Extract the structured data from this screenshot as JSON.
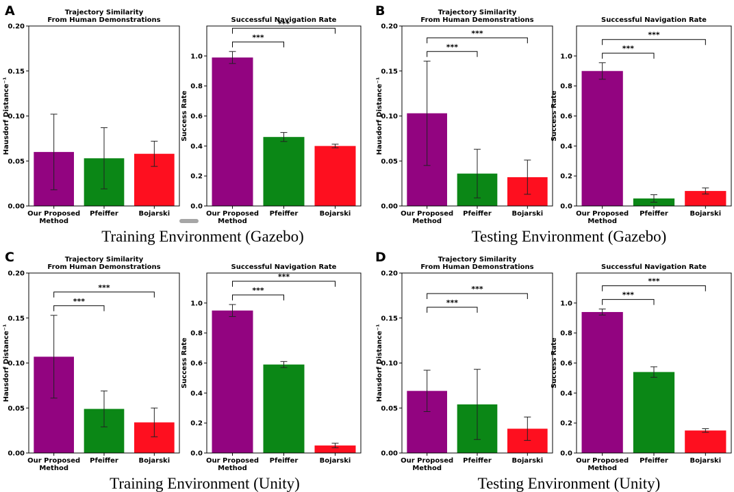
{
  "colors": {
    "purple": "#920480",
    "green": "#0b8716",
    "red": "#fe0f1f",
    "marker": "#a6a6a6"
  },
  "panels": [
    {
      "label": "A",
      "title": "Training Environment (Gazebo)"
    },
    {
      "label": "B",
      "title": "Testing Environment (Gazebo)"
    },
    {
      "label": "C",
      "title": "Training Environment (Unity)"
    },
    {
      "label": "D",
      "title": "Testing Environment (Unity)"
    }
  ],
  "chart_data": [
    {
      "id": "A-left",
      "type": "bar",
      "title": [
        "Trajectory Similarity",
        "From Human Demonstrations"
      ],
      "ylabel": "Hausdorf Distance⁻¹",
      "ylim": [
        0,
        0.2
      ],
      "yticks": [
        "0.00",
        "0.05",
        "0.10",
        "0.15",
        "0.20"
      ],
      "categories": [
        [
          "Our Proposed",
          "Method"
        ],
        [
          "Pfeiffer"
        ],
        [
          "Bojarski"
        ]
      ],
      "values": [
        0.06,
        0.053,
        0.058
      ],
      "errors": [
        0.042,
        0.034,
        0.014
      ],
      "significance": []
    },
    {
      "id": "A-right",
      "type": "bar",
      "title": [
        "Successful Navigation Rate"
      ],
      "ylabel": "Success Rate",
      "ylim": [
        0,
        1.2
      ],
      "yticks": [
        "0.0",
        "0.2",
        "0.4",
        "0.6",
        "0.8",
        "1.0"
      ],
      "categories": [
        [
          "Our Proposed",
          "Method"
        ],
        [
          "Pfeiffer"
        ],
        [
          "Bojarski"
        ]
      ],
      "values": [
        0.99,
        0.46,
        0.4
      ],
      "errors": [
        0.04,
        0.03,
        0.012
      ],
      "significance": [
        {
          "from": 0,
          "to": 1,
          "label": "***"
        },
        {
          "from": 0,
          "to": 2,
          "label": "***"
        }
      ]
    },
    {
      "id": "B-left",
      "type": "bar",
      "title": [
        "Trajectory Similarity",
        "From Human Demonstrations"
      ],
      "ylabel": "Hausdorf Distance⁻¹",
      "ylim": [
        0,
        0.2
      ],
      "yticks": [
        "0.00",
        "0.05",
        "0.10",
        "0.15",
        "0.20"
      ],
      "categories": [
        [
          "Our Proposed",
          "Method"
        ],
        [
          "Pfeiffer"
        ],
        [
          "Bojarski"
        ]
      ],
      "values": [
        0.103,
        0.036,
        0.032
      ],
      "errors": [
        0.058,
        0.027,
        0.019
      ],
      "significance": [
        {
          "from": 0,
          "to": 1,
          "label": "***"
        },
        {
          "from": 0,
          "to": 2,
          "label": "***"
        }
      ]
    },
    {
      "id": "B-right",
      "type": "bar",
      "title": [
        "Successful Navigation Rate"
      ],
      "ylabel": "Success Rate",
      "ylim": [
        0,
        1.2
      ],
      "yticks": [
        "0.0",
        "0.2",
        "0.4",
        "0.6",
        "0.8",
        "1.0"
      ],
      "categories": [
        [
          "Our Proposed",
          "Method"
        ],
        [
          "Pfeiffer"
        ],
        [
          "Bojarski"
        ]
      ],
      "values": [
        0.9,
        0.05,
        0.1
      ],
      "errors": [
        0.055,
        0.025,
        0.02
      ],
      "significance": [
        {
          "from": 0,
          "to": 1,
          "label": "***"
        },
        {
          "from": 0,
          "to": 2,
          "label": "***"
        }
      ]
    },
    {
      "id": "C-left",
      "type": "bar",
      "title": [
        "Trajectory Similarity",
        "From Human Demonstrations"
      ],
      "ylabel": "Hausdorf Distance⁻¹",
      "ylim": [
        0,
        0.2
      ],
      "yticks": [
        "0.00",
        "0.05",
        "0.10",
        "0.15",
        "0.20"
      ],
      "categories": [
        [
          "Our Proposed",
          "Method"
        ],
        [
          "Pfeiffer"
        ],
        [
          "Bojarski"
        ]
      ],
      "values": [
        0.107,
        0.049,
        0.034
      ],
      "errors": [
        0.046,
        0.02,
        0.016
      ],
      "significance": [
        {
          "from": 0,
          "to": 1,
          "label": "***"
        },
        {
          "from": 0,
          "to": 2,
          "label": "***"
        }
      ]
    },
    {
      "id": "C-right",
      "type": "bar",
      "title": [
        "Successful Navigation Rate"
      ],
      "ylabel": "Success Rate",
      "ylim": [
        0,
        1.2
      ],
      "yticks": [
        "0.0",
        "0.2",
        "0.4",
        "0.6",
        "0.8",
        "1.0"
      ],
      "categories": [
        [
          "Our Proposed",
          "Method"
        ],
        [
          "Pfeiffer"
        ],
        [
          "Bojarski"
        ]
      ],
      "values": [
        0.95,
        0.59,
        0.05
      ],
      "errors": [
        0.04,
        0.02,
        0.015
      ],
      "significance": [
        {
          "from": 0,
          "to": 1,
          "label": "***"
        },
        {
          "from": 0,
          "to": 2,
          "label": "***"
        }
      ]
    },
    {
      "id": "D-left",
      "type": "bar",
      "title": [
        "Trajectory Similarity",
        "From Human Demonstrations"
      ],
      "ylabel": "Hausdorf Distance⁻¹",
      "ylim": [
        0,
        0.2
      ],
      "yticks": [
        "0.00",
        "0.05",
        "0.10",
        "0.15",
        "0.20"
      ],
      "categories": [
        [
          "Our Proposed",
          "Method"
        ],
        [
          "Pfeiffer"
        ],
        [
          "Bojarski"
        ]
      ],
      "values": [
        0.069,
        0.054,
        0.027
      ],
      "errors": [
        0.023,
        0.039,
        0.013
      ],
      "significance": [
        {
          "from": 0,
          "to": 1,
          "label": "***"
        },
        {
          "from": 0,
          "to": 2,
          "label": "***"
        }
      ]
    },
    {
      "id": "D-right",
      "type": "bar",
      "title": [
        "Successful Navigation Rate"
      ],
      "ylabel": "Success Rate",
      "ylim": [
        0,
        1.2
      ],
      "yticks": [
        "0.0",
        "0.2",
        "0.4",
        "0.6",
        "0.8",
        "1.0"
      ],
      "categories": [
        [
          "Our Proposed",
          "Method"
        ],
        [
          "Pfeiffer"
        ],
        [
          "Bojarski"
        ]
      ],
      "values": [
        0.94,
        0.54,
        0.15
      ],
      "errors": [
        0.02,
        0.035,
        0.012
      ],
      "significance": [
        {
          "from": 0,
          "to": 1,
          "label": "***"
        },
        {
          "from": 0,
          "to": 2,
          "label": "***"
        }
      ]
    }
  ]
}
